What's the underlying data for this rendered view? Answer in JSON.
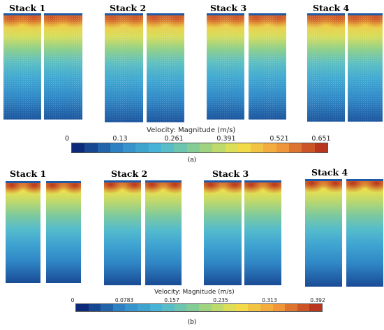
{
  "figure_a": {
    "stacks": [
      "Stack 1",
      "Stack 2",
      "Stack 3",
      "Stack 4"
    ],
    "colorbar": {
      "title": "Velocity: Magnitude (m/s)",
      "ticks": [
        "0",
        "0.13",
        "0.261",
        "0.391",
        "0.521",
        "0.651"
      ]
    },
    "caption": "(a)"
  },
  "figure_b": {
    "stacks": [
      "Stack 1",
      "Stack 2",
      "Stack 3",
      "Stack 4"
    ],
    "colorbar": {
      "title": "Velocity: Magnitude (m/s)",
      "ticks": [
        "0",
        "0.0783",
        "0.157",
        "0.235",
        "0.313",
        "0.392"
      ]
    },
    "caption": "(b)"
  },
  "colors": {
    "low": "#0d2a7a",
    "mid_blue": "#2f86c6",
    "cyan": "#4ab8d8",
    "green": "#8fd08a",
    "yellow": "#f2e24a",
    "orange": "#f39a3a",
    "high": "#b8351e"
  }
}
